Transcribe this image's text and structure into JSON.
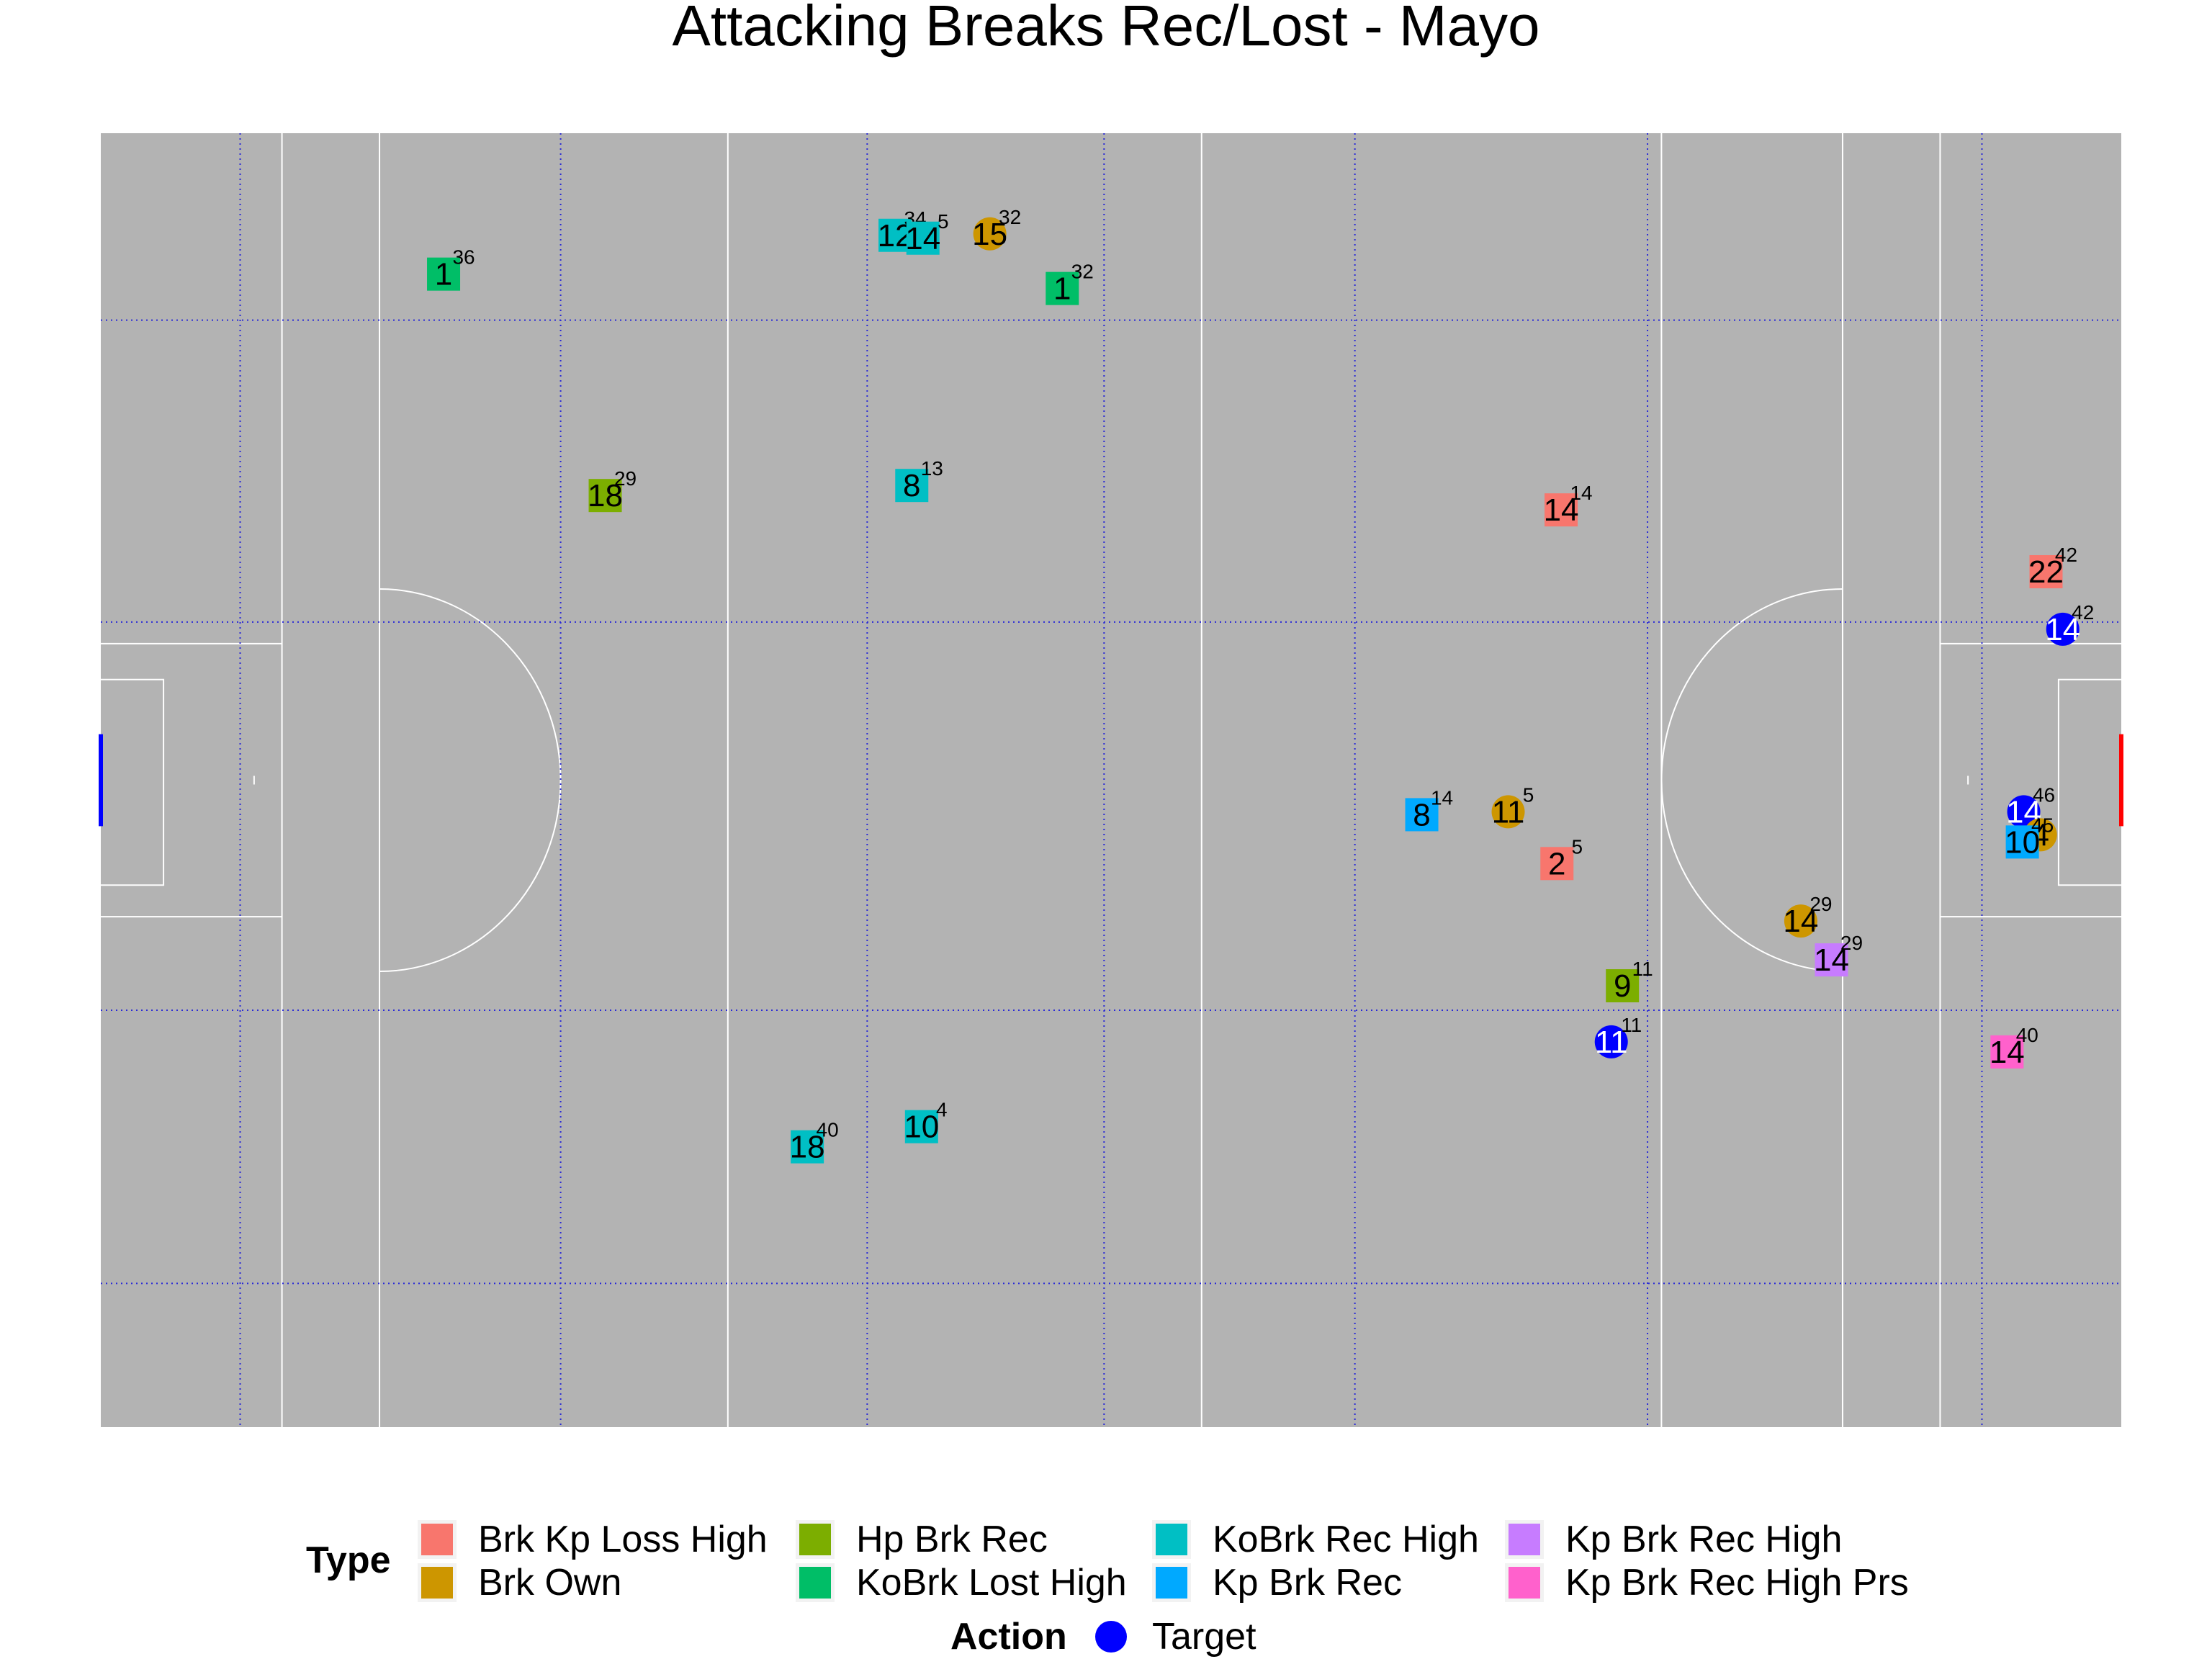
{
  "title": "Attacking Breaks Rec/Lost - Mayo",
  "chart_data": {
    "type": "scatter",
    "title": "Attacking Breaks Rec/Lost - Mayo",
    "xlim": [
      0,
      145
    ],
    "ylim": [
      0,
      90
    ],
    "grid_x": [
      10,
      33,
      55,
      72,
      90,
      111,
      135
    ],
    "grid_y": [
      10,
      29,
      56,
      77
    ],
    "legend": {
      "position": "bottom",
      "type_title": "Type",
      "action_title": "Action",
      "types": [
        {
          "name": "Brk Kp Loss High",
          "color": "#F8766D"
        },
        {
          "name": "Brk Own",
          "color": "#CD9600"
        },
        {
          "name": "Hp Brk Rec",
          "color": "#7CAE00"
        },
        {
          "name": "KoBrk Lost High",
          "color": "#00BE67"
        },
        {
          "name": "KoBrk Rec High",
          "color": "#00BFC4"
        },
        {
          "name": "Kp Brk Rec",
          "color": "#00A9FF"
        },
        {
          "name": "Kp Brk Rec High",
          "color": "#C77CFF"
        },
        {
          "name": "Kp Brk Rec High Prs",
          "color": "#FF61CC"
        }
      ],
      "actions": [
        {
          "name": "Target",
          "color": "#0000FF"
        }
      ]
    },
    "points": [
      {
        "x": 24.6,
        "y": 80.2,
        "label": "1",
        "minute": "36",
        "type": "KoBrk Lost High",
        "shape": "square"
      },
      {
        "x": 57.0,
        "y": 82.9,
        "label": "12",
        "minute": "34",
        "type": "KoBrk Rec High",
        "shape": "square"
      },
      {
        "x": 59.0,
        "y": 82.7,
        "label": "14",
        "minute": "5",
        "type": "KoBrk Rec High",
        "shape": "square"
      },
      {
        "x": 63.8,
        "y": 83.0,
        "label": "15",
        "minute": "32",
        "type": "Brk Own",
        "shape": "circle"
      },
      {
        "x": 69.0,
        "y": 79.2,
        "label": "1",
        "minute": "32",
        "type": "KoBrk Lost High",
        "shape": "square"
      },
      {
        "x": 36.2,
        "y": 64.8,
        "label": "18",
        "minute": "29",
        "type": "Hp Brk Rec",
        "shape": "square"
      },
      {
        "x": 58.2,
        "y": 65.5,
        "label": "8",
        "minute": "13",
        "type": "KoBrk Rec High",
        "shape": "square"
      },
      {
        "x": 104.8,
        "y": 63.8,
        "label": "14",
        "minute": "14",
        "type": "Brk Kp Loss High",
        "shape": "square"
      },
      {
        "x": 139.6,
        "y": 59.5,
        "label": "22",
        "minute": "42",
        "type": "Brk Kp Loss High",
        "shape": "square"
      },
      {
        "x": 140.8,
        "y": 55.5,
        "label": "14",
        "minute": "42",
        "type": "Target",
        "shape": "circle"
      },
      {
        "x": 94.8,
        "y": 42.6,
        "label": "8",
        "minute": "14",
        "type": "Kp Brk Rec",
        "shape": "square"
      },
      {
        "x": 101.0,
        "y": 42.8,
        "label": "11",
        "minute": "5",
        "type": "Brk Own",
        "shape": "circle"
      },
      {
        "x": 104.5,
        "y": 39.2,
        "label": "2",
        "minute": "5",
        "type": "Brk Kp Loss High",
        "shape": "square"
      },
      {
        "x": 138.0,
        "y": 42.8,
        "label": "14",
        "minute": "46",
        "type": "Target",
        "shape": "circle"
      },
      {
        "x": 139.2,
        "y": 41.2,
        "label": "4",
        "minute": "",
        "type": "Brk Own",
        "shape": "circle"
      },
      {
        "x": 137.9,
        "y": 40.7,
        "label": "10",
        "minute": "45",
        "type": "Kp Brk Rec",
        "shape": "square"
      },
      {
        "x": 122.0,
        "y": 35.2,
        "label": "14",
        "minute": "29",
        "type": "Brk Own",
        "shape": "circle"
      },
      {
        "x": 124.2,
        "y": 32.5,
        "label": "14",
        "minute": "29",
        "type": "Kp Brk Rec High",
        "shape": "square"
      },
      {
        "x": 109.2,
        "y": 30.7,
        "label": "9",
        "minute": "11",
        "type": "Hp Brk Rec",
        "shape": "square"
      },
      {
        "x": 108.4,
        "y": 26.8,
        "label": "11",
        "minute": "11",
        "type": "Target",
        "shape": "circle"
      },
      {
        "x": 136.8,
        "y": 26.1,
        "label": "14",
        "minute": "40",
        "type": "Kp Brk Rec High Prs",
        "shape": "square"
      },
      {
        "x": 50.7,
        "y": 19.5,
        "label": "18",
        "minute": "40",
        "type": "KoBrk Rec High",
        "shape": "square"
      },
      {
        "x": 58.9,
        "y": 20.9,
        "label": "10",
        "minute": "4",
        "type": "KoBrk Rec High",
        "shape": "square"
      }
    ]
  }
}
